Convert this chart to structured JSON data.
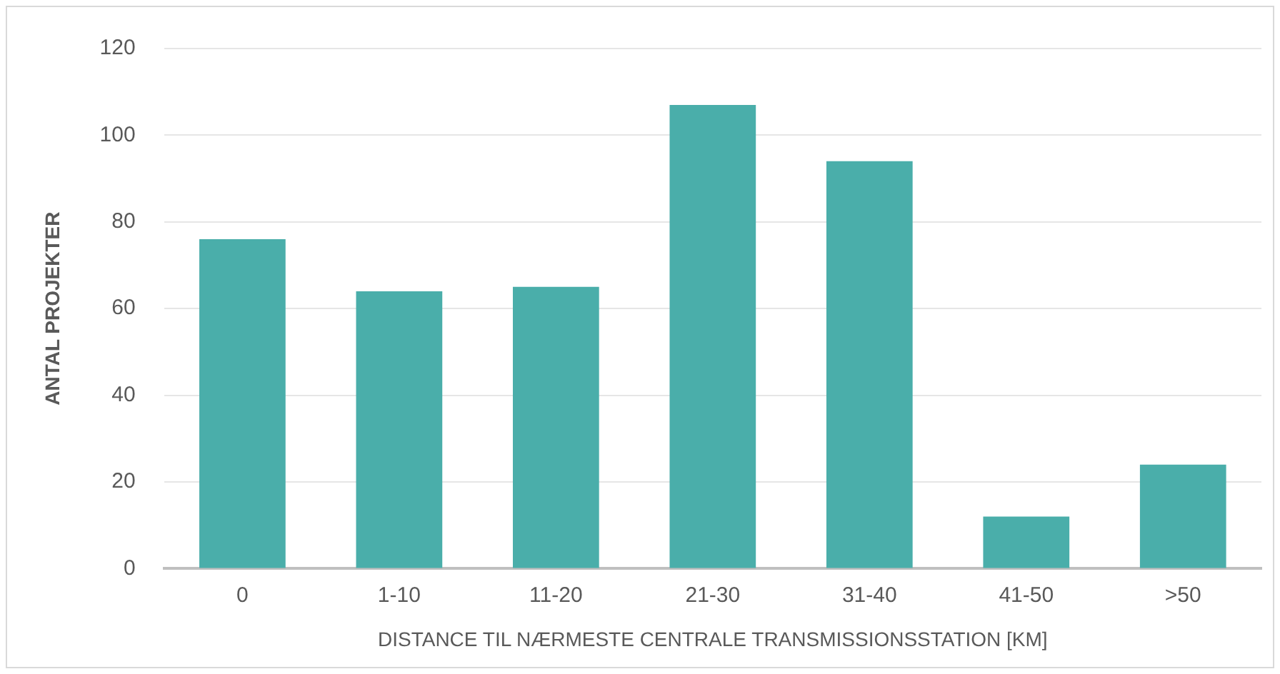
{
  "chart_data": {
    "type": "bar",
    "xlabel": "DISTANCE TIL NÆRMESTE CENTRALE TRANSMISSIONSSTATION [KM]",
    "ylabel": "ANTAL PROJEKTER",
    "categories": [
      "0",
      "1-10",
      "11-20",
      "21-30",
      "31-40",
      "41-50",
      ">50"
    ],
    "values": [
      76,
      64,
      65,
      107,
      94,
      12,
      24
    ],
    "color": "#4aaeaa",
    "ylim": [
      0,
      120
    ],
    "yticks": [
      0,
      20,
      40,
      60,
      80,
      100,
      120
    ],
    "grid": "y",
    "legend": false
  }
}
